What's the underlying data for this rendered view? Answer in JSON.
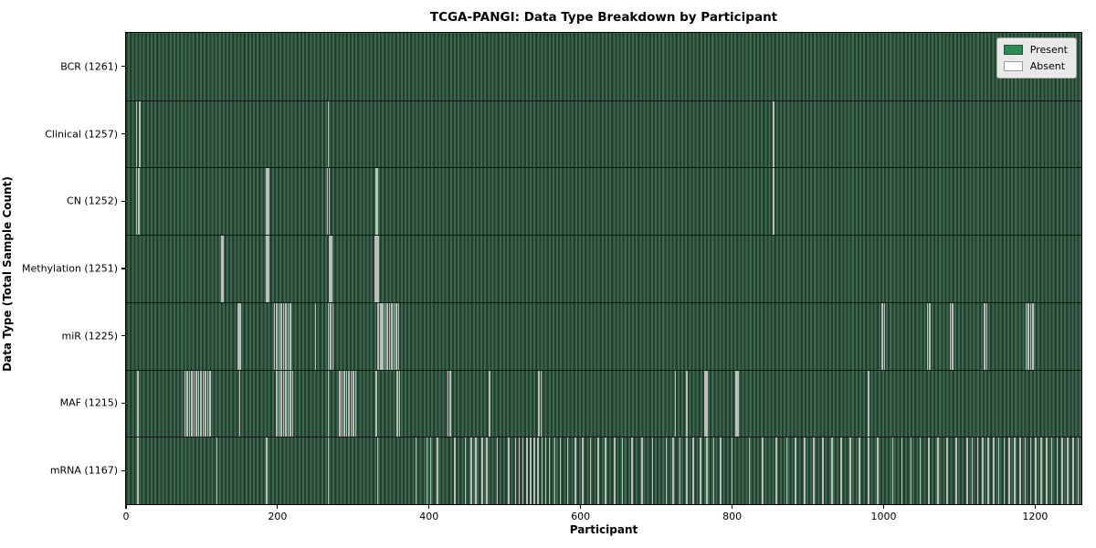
{
  "chart_data": {
    "type": "heatmap",
    "title": "TCGA-PANGI: Data Type Breakdown by Participant",
    "xlabel": "Participant",
    "ylabel": "Data Type (Total Sample Count)",
    "total_participants": 1261,
    "x_ticks": [
      "0",
      "200",
      "400",
      "600",
      "800",
      "1000",
      "1200"
    ],
    "x_tick_values": [
      0,
      200,
      400,
      600,
      800,
      1000,
      1200
    ],
    "xlim": [
      0,
      1261
    ],
    "grid": false,
    "legend_position": "upper right",
    "legend": [
      {
        "label": "Present",
        "color": "#2e8b57"
      },
      {
        "label": "Absent",
        "color": "#ffffff"
      }
    ],
    "colors": {
      "present": "#2e8b57",
      "present_stripe_dark": "#21402f",
      "present_stripe_light": "#3d6a4e",
      "absent_stripe": "#b9bfba",
      "row_divider": "#0d130f",
      "legend_bg": "#e9e9e9",
      "legend_border": "#a6a6a6",
      "present_swatch_border": "#1d5738",
      "absent_swatch_border": "#9a9a9a"
    },
    "rows": [
      {
        "name": "BCR",
        "label": "BCR (1261)",
        "present_count": 1261,
        "absent_participants": []
      },
      {
        "name": "Clinical",
        "label": "Clinical (1257)",
        "present_count": 1257,
        "absent_participants": [
          14,
          18,
          267,
          855
        ]
      },
      {
        "name": "CN",
        "label": "CN (1252)",
        "present_count": 1252,
        "absent_participants": [
          14,
          17,
          186,
          188,
          266,
          268,
          330,
          332,
          855
        ]
      },
      {
        "name": "Methylation",
        "label": "Methylation (1251)",
        "present_count": 1251,
        "absent_participants": [
          126,
          128,
          186,
          188,
          268,
          270,
          272,
          329,
          331,
          333
        ]
      },
      {
        "name": "miR",
        "label": "miR (1225)",
        "present_count": 1225,
        "absent_participants": [
          148,
          151,
          196,
          199,
          202,
          205,
          208,
          211,
          214,
          217,
          250,
          267,
          270,
          273,
          333,
          336,
          339,
          342,
          345,
          348,
          351,
          354,
          357,
          360,
          998,
          1001,
          1058,
          1061,
          1088,
          1091,
          1133,
          1136,
          1188,
          1191,
          1194,
          1197
        ]
      },
      {
        "name": "MAF",
        "label": "MAF (1215)",
        "present_count": 1215,
        "absent_participants": [
          16,
          78,
          81,
          84,
          87,
          90,
          93,
          96,
          99,
          102,
          105,
          108,
          111,
          150,
          199,
          202,
          205,
          208,
          211,
          214,
          217,
          220,
          267,
          282,
          285,
          288,
          291,
          294,
          297,
          300,
          303,
          330,
          358,
          361,
          425,
          428,
          480,
          545,
          548,
          725,
          740,
          764,
          767,
          805,
          808,
          980
        ]
      },
      {
        "name": "mRNA",
        "label": "mRNA (1167)",
        "present_count": 1167,
        "absent_participants": [
          16,
          120,
          186,
          267,
          332,
          383,
          397,
          402,
          411,
          434,
          448,
          456,
          462,
          470,
          476,
          490,
          505,
          514,
          519,
          524,
          529,
          534,
          539,
          544,
          549,
          554,
          559,
          566,
          573,
          583,
          593,
          603,
          613,
          623,
          633,
          645,
          655,
          668,
          681,
          695,
          713,
          722,
          731,
          740,
          749,
          758,
          767,
          776,
          785,
          800,
          823,
          840,
          858,
          872,
          884,
          896,
          908,
          920,
          932,
          944,
          956,
          968,
          980,
          992,
          1012,
          1024,
          1036,
          1048,
          1060,
          1072,
          1084,
          1096,
          1110,
          1117,
          1124,
          1131,
          1138,
          1145,
          1152,
          1159,
          1166,
          1173,
          1180,
          1187,
          1194,
          1201,
          1208,
          1215,
          1222,
          1229,
          1236,
          1243,
          1250,
          1257
        ]
      }
    ]
  }
}
